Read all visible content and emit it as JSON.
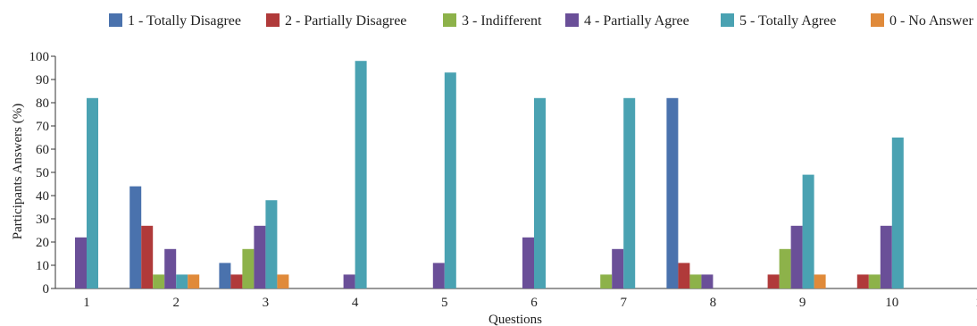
{
  "chart_data": {
    "type": "bar",
    "title": "",
    "xlabel": "Questions",
    "ylabel": "Participants Answers (%)",
    "categories": [
      "1",
      "2",
      "3",
      "4",
      "5",
      "6",
      "7",
      "8",
      "9",
      "10"
    ],
    "extra_x_tick": "1",
    "ylim": [
      0,
      100
    ],
    "yticks": [
      0,
      10,
      20,
      30,
      40,
      50,
      60,
      70,
      80,
      90,
      100
    ],
    "grid": false,
    "legend_position": "top",
    "series": [
      {
        "name": "1 - Totally Disagree",
        "color": "#4a72ad",
        "values": [
          0,
          44,
          11,
          0,
          0,
          0,
          0,
          82,
          0,
          0
        ]
      },
      {
        "name": "2 - Partially Disagree",
        "color": "#b03a3a",
        "values": [
          0,
          27,
          6,
          0,
          0,
          0,
          0,
          11,
          6,
          6
        ]
      },
      {
        "name": "3 - Indifferent",
        "color": "#8db24a",
        "values": [
          0,
          6,
          17,
          0,
          0,
          0,
          6,
          6,
          17,
          6
        ]
      },
      {
        "name": "4 - Partially Agree",
        "color": "#6a4f98",
        "values": [
          22,
          17,
          27,
          6,
          11,
          22,
          17,
          6,
          27,
          27
        ]
      },
      {
        "name": "5 - Totally Agree",
        "color": "#4aa2b2",
        "values": [
          82,
          6,
          38,
          98,
          93,
          82,
          82,
          0,
          49,
          65
        ]
      },
      {
        "name": "0 - No Answer",
        "color": "#e08a3a",
        "values": [
          0,
          6,
          6,
          0,
          0,
          0,
          0,
          0,
          6,
          0
        ]
      }
    ]
  }
}
